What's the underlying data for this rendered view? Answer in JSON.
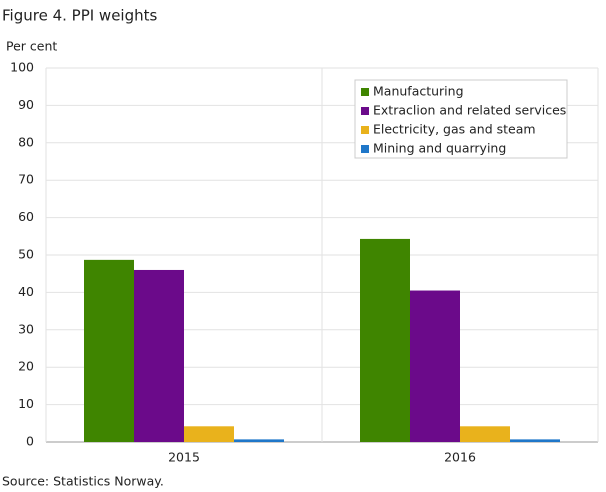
{
  "chart_data": {
    "type": "bar",
    "title": "Figure 4. PPI weights",
    "y_label": "Per cent",
    "source": "Source: Statistics Norway.",
    "categories": [
      "2015",
      "2016"
    ],
    "series": [
      {
        "name": "Manufacturing",
        "color": "#3f8500",
        "values": [
          48.7,
          54.3
        ]
      },
      {
        "name": "Extraclion and related services",
        "color": "#6b0a8a",
        "values": [
          46.0,
          40.5
        ]
      },
      {
        "name": "Electricity, gas and steam",
        "color": "#e9b21c",
        "values": [
          4.2,
          4.2
        ]
      },
      {
        "name": "Mining and quarrying",
        "color": "#1f77c9",
        "values": [
          0.7,
          0.7
        ]
      }
    ],
    "ylim": [
      0,
      100
    ],
    "yticks": [
      0,
      10,
      20,
      30,
      40,
      50,
      60,
      70,
      80,
      90,
      100
    ],
    "grid": true,
    "legend": "upper right"
  }
}
